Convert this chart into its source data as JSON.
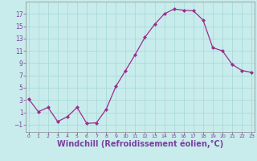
{
  "x": [
    0,
    1,
    2,
    3,
    4,
    5,
    6,
    7,
    8,
    9,
    10,
    11,
    12,
    13,
    14,
    15,
    16,
    17,
    18,
    19,
    20,
    21,
    22,
    23
  ],
  "y": [
    3.2,
    1.1,
    1.8,
    -0.5,
    0.3,
    1.8,
    -0.8,
    -0.7,
    1.5,
    5.2,
    7.8,
    10.4,
    13.2,
    15.3,
    17.0,
    17.8,
    17.6,
    17.5,
    16.0,
    11.5,
    11.0,
    8.8,
    7.8,
    7.5
  ],
  "line_color": "#9b2d8e",
  "marker": "D",
  "marker_size": 2.0,
  "background_color": "#c8ecec",
  "grid_color": "#aadada",
  "xlabel": "Windchill (Refroidissement éolien,°C)",
  "xlabel_fontsize": 7,
  "yticks": [
    -1,
    1,
    3,
    5,
    7,
    9,
    11,
    13,
    15,
    17
  ],
  "xticks": [
    0,
    1,
    2,
    3,
    4,
    5,
    6,
    7,
    8,
    9,
    10,
    11,
    12,
    13,
    14,
    15,
    16,
    17,
    18,
    19,
    20,
    21,
    22,
    23
  ],
  "ylim": [
    -2.2,
    19.0
  ],
  "xlim": [
    -0.3,
    23.3
  ],
  "tick_color": "#7b3f9e",
  "spine_color": "#888888",
  "label_color": "#7b3f9e"
}
